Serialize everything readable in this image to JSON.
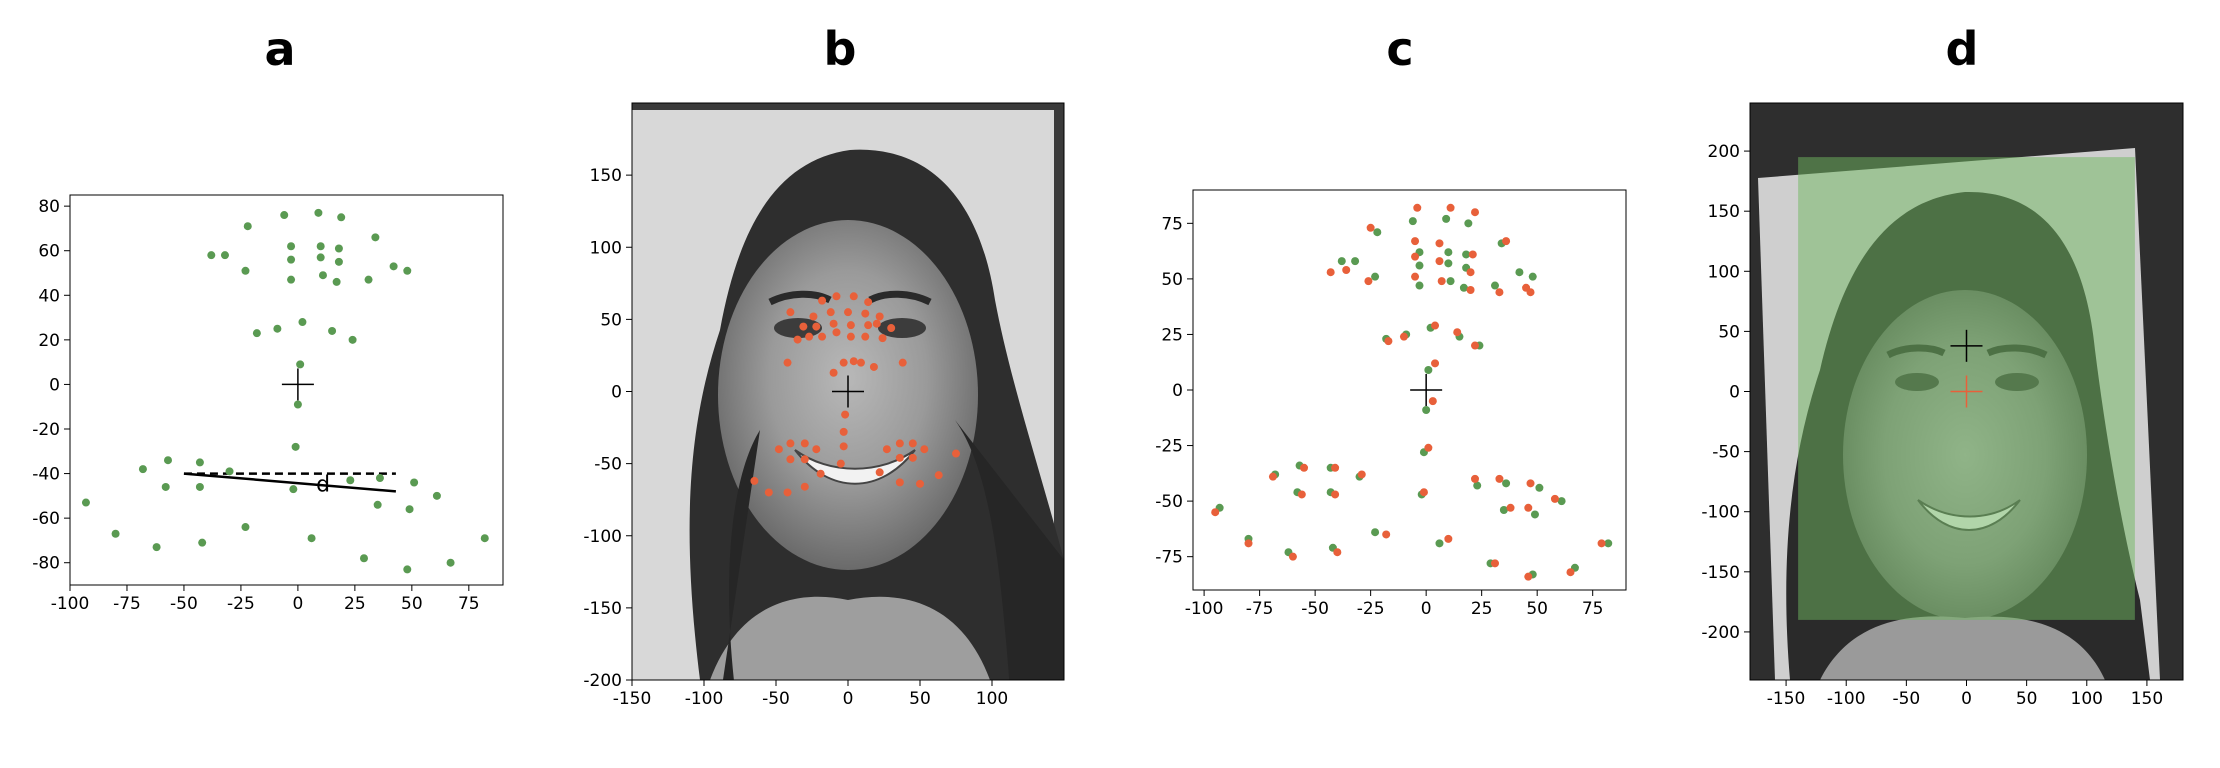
{
  "panels": {
    "a": "a",
    "b": "b",
    "c": "c",
    "d": "d"
  },
  "colors": {
    "green": "#5a9a52",
    "orange": "#e8603a",
    "photo_bg": "#3a3a3a",
    "overlay_green": "#6fb860"
  },
  "chart_data": [
    {
      "panel": "a",
      "type": "scatter",
      "title": "a",
      "xlim": [
        -100,
        90
      ],
      "ylim": [
        85,
        -90
      ],
      "yaxis_inverted": true,
      "xticks": [
        -100,
        -75,
        -50,
        -25,
        0,
        25,
        50,
        75
      ],
      "yticks": [
        -80,
        -60,
        -40,
        -20,
        0,
        20,
        40,
        60,
        80
      ],
      "annotation": "d",
      "solid_line": [
        [
          -50,
          -40
        ],
        [
          43,
          -48
        ]
      ],
      "dashed_line": [
        [
          -50,
          -40
        ],
        [
          43,
          -40
        ]
      ],
      "center_cross": [
        0,
        0
      ],
      "series": [
        {
          "color": "green",
          "points": [
            [
              -93,
              -53
            ],
            [
              -80,
              -67
            ],
            [
              -62,
              -73
            ],
            [
              -42,
              -71
            ],
            [
              -23,
              -64
            ],
            [
              6,
              -69
            ],
            [
              29,
              -78
            ],
            [
              48,
              -83
            ],
            [
              67,
              -80
            ],
            [
              82,
              -69
            ],
            [
              -68,
              -38
            ],
            [
              -58,
              -46
            ],
            [
              -57,
              -34
            ],
            [
              -43,
              -46
            ],
            [
              -43,
              -35
            ],
            [
              -30,
              -39
            ],
            [
              -2,
              -47
            ],
            [
              23,
              -43
            ],
            [
              35,
              -54
            ],
            [
              36,
              -42
            ],
            [
              49,
              -56
            ],
            [
              51,
              -44
            ],
            [
              61,
              -50
            ],
            [
              -1,
              -28
            ],
            [
              0,
              -9
            ],
            [
              1,
              9
            ],
            [
              -9,
              25
            ],
            [
              -18,
              23
            ],
            [
              2,
              28
            ],
            [
              15,
              24
            ],
            [
              24,
              20
            ],
            [
              -23,
              51
            ],
            [
              -3,
              47
            ],
            [
              -38,
              58
            ],
            [
              -32,
              58
            ],
            [
              -3,
              56
            ],
            [
              -3,
              62
            ],
            [
              11,
              49
            ],
            [
              10,
              57
            ],
            [
              10,
              62
            ],
            [
              17,
              46
            ],
            [
              18,
              55
            ],
            [
              18,
              61
            ],
            [
              31,
              47
            ],
            [
              42,
              53
            ],
            [
              48,
              51
            ],
            [
              34,
              66
            ],
            [
              -22,
              71
            ],
            [
              -6,
              76
            ],
            [
              9,
              77
            ],
            [
              19,
              75
            ]
          ]
        }
      ]
    },
    {
      "panel": "b",
      "type": "scatter",
      "title": "b",
      "xlim": [
        -150,
        150
      ],
      "ylim": [
        200,
        -200
      ],
      "yaxis_inverted": true,
      "xticks": [
        -150,
        -100,
        -50,
        0,
        50,
        100
      ],
      "yticks": [
        -200,
        -150,
        -100,
        -50,
        0,
        50,
        100,
        150
      ],
      "background": "grayscale face photograph",
      "center_cross": [
        0,
        0
      ],
      "series": [
        {
          "color": "orange",
          "points": [
            [
              -65,
              -62
            ],
            [
              -55,
              -70
            ],
            [
              -42,
              -70
            ],
            [
              -30,
              -66
            ],
            [
              -19,
              -57
            ],
            [
              22,
              -56
            ],
            [
              36,
              -63
            ],
            [
              50,
              -64
            ],
            [
              63,
              -58
            ],
            [
              75,
              -43
            ],
            [
              -5,
              -50
            ],
            [
              -3,
              -38
            ],
            [
              -3,
              -28
            ],
            [
              -2,
              -16
            ],
            [
              -10,
              13
            ],
            [
              -3,
              20
            ],
            [
              4,
              21
            ],
            [
              9,
              20
            ],
            [
              18,
              17
            ],
            [
              -48,
              -40
            ],
            [
              -40,
              -47
            ],
            [
              -30,
              -47
            ],
            [
              -22,
              -40
            ],
            [
              -30,
              -36
            ],
            [
              -40,
              -36
            ],
            [
              27,
              -40
            ],
            [
              36,
              -46
            ],
            [
              45,
              -46
            ],
            [
              53,
              -40
            ],
            [
              45,
              -36
            ],
            [
              36,
              -36
            ],
            [
              -35,
              36
            ],
            [
              -27,
              38
            ],
            [
              -18,
              38
            ],
            [
              -8,
              41
            ],
            [
              2,
              38
            ],
            [
              12,
              38
            ],
            [
              24,
              37
            ],
            [
              30,
              44
            ],
            [
              22,
              52
            ],
            [
              12,
              54
            ],
            [
              0,
              55
            ],
            [
              -12,
              55
            ],
            [
              -24,
              52
            ],
            [
              -31,
              45
            ],
            [
              -22,
              45
            ],
            [
              -10,
              47
            ],
            [
              2,
              46
            ],
            [
              14,
              46
            ],
            [
              20,
              47
            ],
            [
              -18,
              63
            ],
            [
              -8,
              66
            ],
            [
              4,
              66
            ],
            [
              14,
              62
            ],
            [
              -40,
              55
            ],
            [
              -42,
              20
            ],
            [
              38,
              20
            ]
          ]
        }
      ]
    },
    {
      "panel": "c",
      "type": "scatter",
      "title": "c",
      "xlim": [
        -105,
        90
      ],
      "ylim": [
        90,
        -90
      ],
      "yaxis_inverted": true,
      "xticks": [
        -100,
        -75,
        -50,
        -25,
        0,
        25,
        50,
        75
      ],
      "yticks": [
        -75,
        -50,
        -25,
        0,
        25,
        50,
        75
      ],
      "center_cross": [
        0,
        0
      ],
      "series": [
        {
          "name": "",
          "color": "green",
          "points": [
            [
              -93,
              -53
            ],
            [
              -80,
              -67
            ],
            [
              -62,
              -73
            ],
            [
              -42,
              -71
            ],
            [
              -23,
              -64
            ],
            [
              6,
              -69
            ],
            [
              29,
              -78
            ],
            [
              48,
              -83
            ],
            [
              67,
              -80
            ],
            [
              82,
              -69
            ],
            [
              -68,
              -38
            ],
            [
              -58,
              -46
            ],
            [
              -57,
              -34
            ],
            [
              -43,
              -46
            ],
            [
              -43,
              -35
            ],
            [
              -30,
              -39
            ],
            [
              -2,
              -47
            ],
            [
              23,
              -43
            ],
            [
              35,
              -54
            ],
            [
              36,
              -42
            ],
            [
              49,
              -56
            ],
            [
              51,
              -44
            ],
            [
              61,
              -50
            ],
            [
              -1,
              -28
            ],
            [
              0,
              -9
            ],
            [
              1,
              9
            ],
            [
              -9,
              25
            ],
            [
              -18,
              23
            ],
            [
              2,
              28
            ],
            [
              15,
              24
            ],
            [
              24,
              20
            ],
            [
              -23,
              51
            ],
            [
              -3,
              47
            ],
            [
              -38,
              58
            ],
            [
              -32,
              58
            ],
            [
              -3,
              56
            ],
            [
              -3,
              62
            ],
            [
              11,
              49
            ],
            [
              10,
              57
            ],
            [
              10,
              62
            ],
            [
              17,
              46
            ],
            [
              18,
              55
            ],
            [
              18,
              61
            ],
            [
              31,
              47
            ],
            [
              42,
              53
            ],
            [
              48,
              51
            ],
            [
              34,
              66
            ],
            [
              -22,
              71
            ],
            [
              -6,
              76
            ],
            [
              9,
              77
            ],
            [
              19,
              75
            ]
          ]
        },
        {
          "name": "",
          "color": "orange",
          "points": [
            [
              -95,
              -55
            ],
            [
              -80,
              -69
            ],
            [
              -60,
              -75
            ],
            [
              -40,
              -73
            ],
            [
              -18,
              -65
            ],
            [
              10,
              -67
            ],
            [
              31,
              -78
            ],
            [
              46,
              -84
            ],
            [
              65,
              -82
            ],
            [
              79,
              -69
            ],
            [
              -69,
              -39
            ],
            [
              -56,
              -47
            ],
            [
              -55,
              -35
            ],
            [
              -41,
              -47
            ],
            [
              -41,
              -35
            ],
            [
              -29,
              -38
            ],
            [
              -1,
              -46
            ],
            [
              22,
              -40
            ],
            [
              38,
              -53
            ],
            [
              33,
              -40
            ],
            [
              46,
              -53
            ],
            [
              47,
              -42
            ],
            [
              58,
              -49
            ],
            [
              1,
              -26
            ],
            [
              3,
              -5
            ],
            [
              4,
              12
            ],
            [
              -10,
              24
            ],
            [
              -17,
              22
            ],
            [
              4,
              29
            ],
            [
              14,
              26
            ],
            [
              22,
              20
            ],
            [
              -26,
              49
            ],
            [
              -5,
              51
            ],
            [
              -43,
              53
            ],
            [
              -36,
              54
            ],
            [
              -5,
              60
            ],
            [
              -5,
              67
            ],
            [
              7,
              49
            ],
            [
              6,
              58
            ],
            [
              6,
              66
            ],
            [
              20,
              45
            ],
            [
              20,
              53
            ],
            [
              21,
              61
            ],
            [
              33,
              44
            ],
            [
              45,
              46
            ],
            [
              47,
              44
            ],
            [
              36,
              67
            ],
            [
              -25,
              73
            ],
            [
              -4,
              82
            ],
            [
              11,
              82
            ],
            [
              22,
              80
            ]
          ]
        }
      ]
    },
    {
      "panel": "d",
      "type": "scatter",
      "title": "d",
      "xlim": [
        -180,
        180
      ],
      "ylim": [
        240,
        -240
      ],
      "yaxis_inverted": true,
      "xticks": [
        -150,
        -100,
        -50,
        0,
        50,
        100,
        150
      ],
      "yticks": [
        -200,
        -150,
        -100,
        -50,
        0,
        50,
        100,
        150,
        200
      ],
      "background": "grayscale face photograph, rotated",
      "overlay_rect": {
        "x0": -140,
        "x1": 140,
        "y0": -190,
        "y1": 195
      },
      "black_cross": [
        0,
        38
      ],
      "red_cross": [
        0,
        0
      ]
    }
  ]
}
